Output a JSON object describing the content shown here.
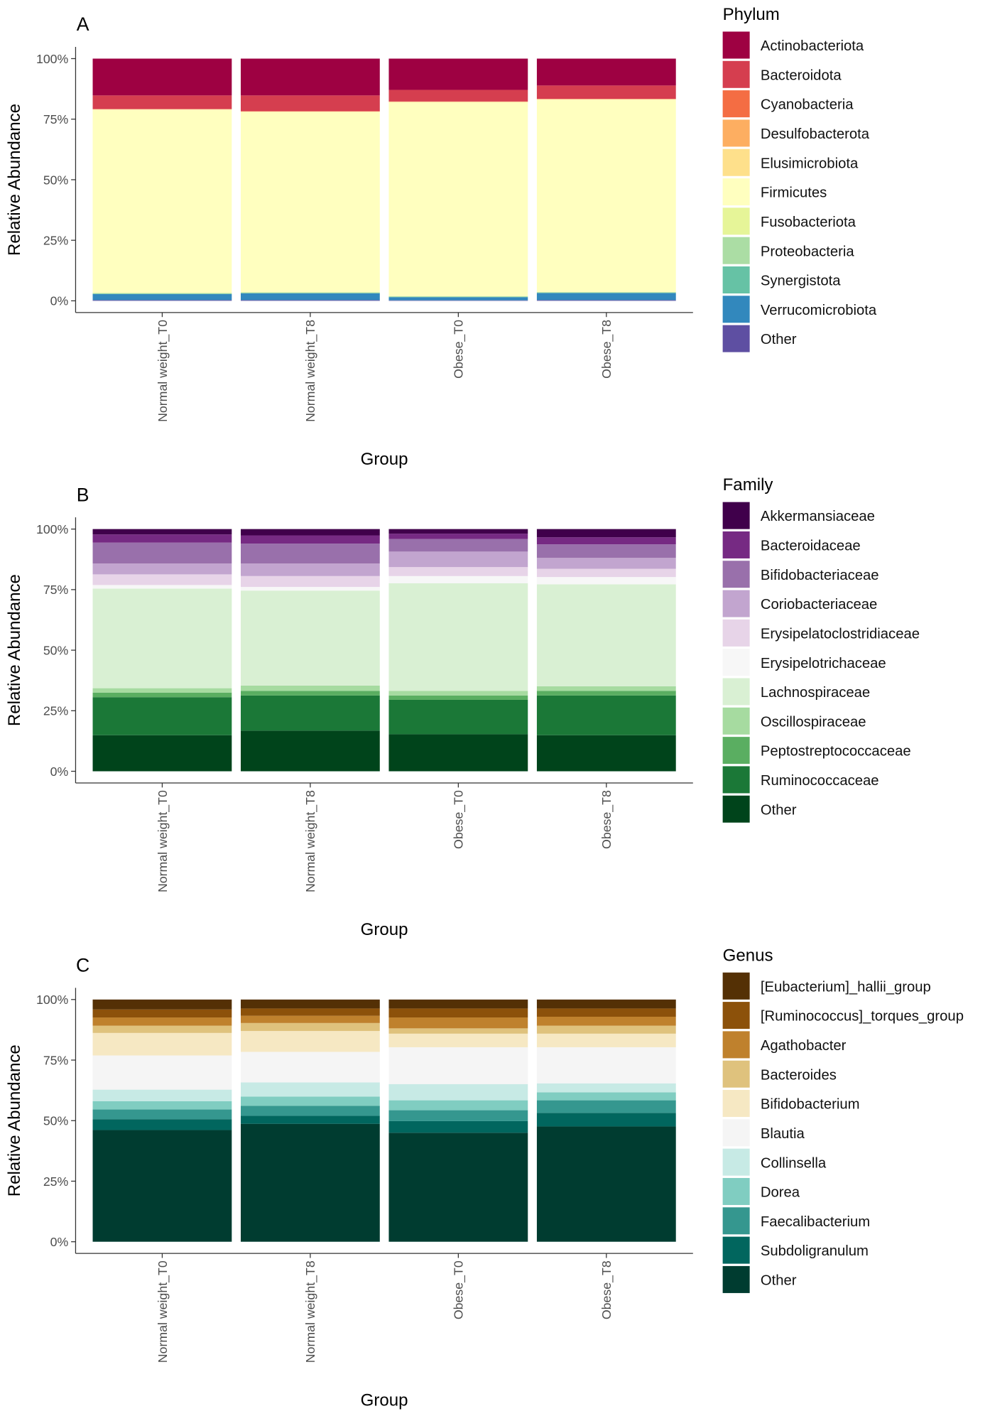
{
  "chart_data": [
    {
      "type": "bar",
      "stacked": true,
      "panel": "A",
      "y_label": "Relative Abundance",
      "x_label": "Group",
      "legend_title": "Phylum",
      "legend": "right",
      "categories": [
        "Normal weight_T0",
        "Normal weight_T8",
        "Obese_T0",
        "Obese_T8"
      ],
      "ylim": [
        0,
        100
      ],
      "yticks": [
        {
          "value": 0,
          "label": "0%"
        },
        {
          "value": 25,
          "label": "25%"
        },
        {
          "value": 50,
          "label": "50%"
        },
        {
          "value": 75,
          "label": "75%"
        },
        {
          "value": 100,
          "label": "100%"
        }
      ],
      "series": [
        {
          "name": "Actinobacteriota",
          "color": "#9e0142",
          "values": [
            15.2,
            15.2,
            12.9,
            11.1
          ]
        },
        {
          "name": "Bacteroidota",
          "color": "#d53e4f",
          "values": [
            5.6,
            6.5,
            4.8,
            5.5
          ]
        },
        {
          "name": "Cyanobacteria",
          "color": "#f46d43",
          "values": [
            0.1,
            0.1,
            0.1,
            0.1
          ]
        },
        {
          "name": "Desulfobacterota",
          "color": "#fdae61",
          "values": [
            0.1,
            0.1,
            0.1,
            0.1
          ]
        },
        {
          "name": "Elusimicrobiota",
          "color": "#fee08b",
          "values": [
            0,
            0,
            0,
            0
          ]
        },
        {
          "name": "Firmicutes",
          "color": "#ffffbf",
          "values": [
            75.8,
            74.6,
            80.2,
            79.6
          ]
        },
        {
          "name": "Fusobacteriota",
          "color": "#e6f598",
          "values": [
            0,
            0,
            0,
            0
          ]
        },
        {
          "name": "Proteobacteria",
          "color": "#abdda4",
          "values": [
            0.3,
            0.3,
            0.3,
            0.3
          ]
        },
        {
          "name": "Synergistota",
          "color": "#66c2a5",
          "values": [
            0.1,
            0.1,
            0.1,
            0.1
          ]
        },
        {
          "name": "Verrucomicrobiota",
          "color": "#3288bd",
          "values": [
            2.5,
            2.8,
            1.3,
            2.9
          ]
        },
        {
          "name": "Other",
          "color": "#5e4fa2",
          "values": [
            0.3,
            0.3,
            0.2,
            0.3
          ]
        }
      ]
    },
    {
      "type": "bar",
      "stacked": true,
      "panel": "B",
      "y_label": "Relative Abundance",
      "x_label": "Group",
      "legend_title": "Family",
      "legend": "right",
      "categories": [
        "Normal weight_T0",
        "Normal weight_T8",
        "Obese_T0",
        "Obese_T8"
      ],
      "ylim": [
        0,
        100
      ],
      "yticks": [
        {
          "value": 0,
          "label": "0%"
        },
        {
          "value": 25,
          "label": "25%"
        },
        {
          "value": 50,
          "label": "50%"
        },
        {
          "value": 75,
          "label": "75%"
        },
        {
          "value": 100,
          "label": "100%"
        }
      ],
      "series": [
        {
          "name": "Akkermansiaceae",
          "color": "#40004b",
          "values": [
            2.2,
            2.6,
            1.9,
            3.4
          ]
        },
        {
          "name": "Bacteroidaceae",
          "color": "#762a83",
          "values": [
            3.4,
            3.4,
            2.2,
            2.9
          ]
        },
        {
          "name": "Bifidobacteriaceae",
          "color": "#9970ab",
          "values": [
            8.6,
            8.2,
            5.2,
            5.6
          ]
        },
        {
          "name": "Coriobacteriaceae",
          "color": "#c2a5cf",
          "values": [
            4.5,
            5.2,
            6.4,
            4.5
          ]
        },
        {
          "name": "Erysipelatoclostridiaceae",
          "color": "#e7d4e8",
          "values": [
            4.4,
            4.5,
            3.7,
            3.4
          ]
        },
        {
          "name": "Erysipelotrichaceae",
          "color": "#f7f7f7",
          "values": [
            1.5,
            1.5,
            3.0,
            3.0
          ]
        },
        {
          "name": "Lachnospiraceae",
          "color": "#d9f0d3",
          "values": [
            41.1,
            39.2,
            44.4,
            42.1
          ]
        },
        {
          "name": "Oscillospiraceae",
          "color": "#a6dba0",
          "values": [
            1.8,
            2.2,
            1.9,
            1.9
          ]
        },
        {
          "name": "Peptostreptococcaceae",
          "color": "#5aae61",
          "values": [
            1.9,
            1.9,
            1.8,
            1.9
          ]
        },
        {
          "name": "Ruminococcaceae",
          "color": "#1b7837",
          "values": [
            15.7,
            14.5,
            14.2,
            16.4
          ]
        },
        {
          "name": "Other",
          "color": "#00441b",
          "values": [
            14.9,
            16.8,
            15.3,
            14.9
          ]
        }
      ]
    },
    {
      "type": "bar",
      "stacked": true,
      "panel": "C",
      "y_label": "Relative Abundance",
      "x_label": "Group",
      "legend_title": "Genus",
      "legend": "right",
      "categories": [
        "Normal weight_T0",
        "Normal weight_T8",
        "Obese_T0",
        "Obese_T8"
      ],
      "ylim": [
        0,
        100
      ],
      "yticks": [
        {
          "value": 0,
          "label": "0%"
        },
        {
          "value": 25,
          "label": "25%"
        },
        {
          "value": 50,
          "label": "50%"
        },
        {
          "value": 75,
          "label": "75%"
        },
        {
          "value": 100,
          "label": "100%"
        }
      ],
      "series": [
        {
          "name": "[Eubacterium]_hallii_group",
          "color": "#543005",
          "values": [
            4.1,
            3.7,
            3.7,
            3.7
          ]
        },
        {
          "name": "[Ruminococcus]_torques_group",
          "color": "#8c510a",
          "values": [
            3.3,
            3.0,
            3.7,
            3.4
          ]
        },
        {
          "name": "Agathobacter",
          "color": "#bf812d",
          "values": [
            3.4,
            3.0,
            4.5,
            3.7
          ]
        },
        {
          "name": "Bacteroides",
          "color": "#dfc27d",
          "values": [
            3.0,
            3.3,
            2.2,
            3.3
          ]
        },
        {
          "name": "Bifidobacterium",
          "color": "#f6e8c3",
          "values": [
            9.3,
            8.6,
            5.6,
            5.6
          ]
        },
        {
          "name": "Blautia",
          "color": "#f5f5f5",
          "values": [
            14.1,
            12.6,
            15.2,
            14.9
          ]
        },
        {
          "name": "Collinsella",
          "color": "#c7eae5",
          "values": [
            4.8,
            5.9,
            6.7,
            3.7
          ]
        },
        {
          "name": "Dorea",
          "color": "#80cdc1",
          "values": [
            3.4,
            3.8,
            4.1,
            3.3
          ]
        },
        {
          "name": "Faecalibacterium",
          "color": "#35978f",
          "values": [
            4.0,
            4.1,
            4.5,
            5.2
          ]
        },
        {
          "name": "Subdoligranulum",
          "color": "#01665e",
          "values": [
            4.5,
            3.3,
            4.8,
            5.6
          ]
        },
        {
          "name": "Other",
          "color": "#003c30",
          "values": [
            46.1,
            48.7,
            45.0,
            47.6
          ]
        }
      ]
    }
  ]
}
